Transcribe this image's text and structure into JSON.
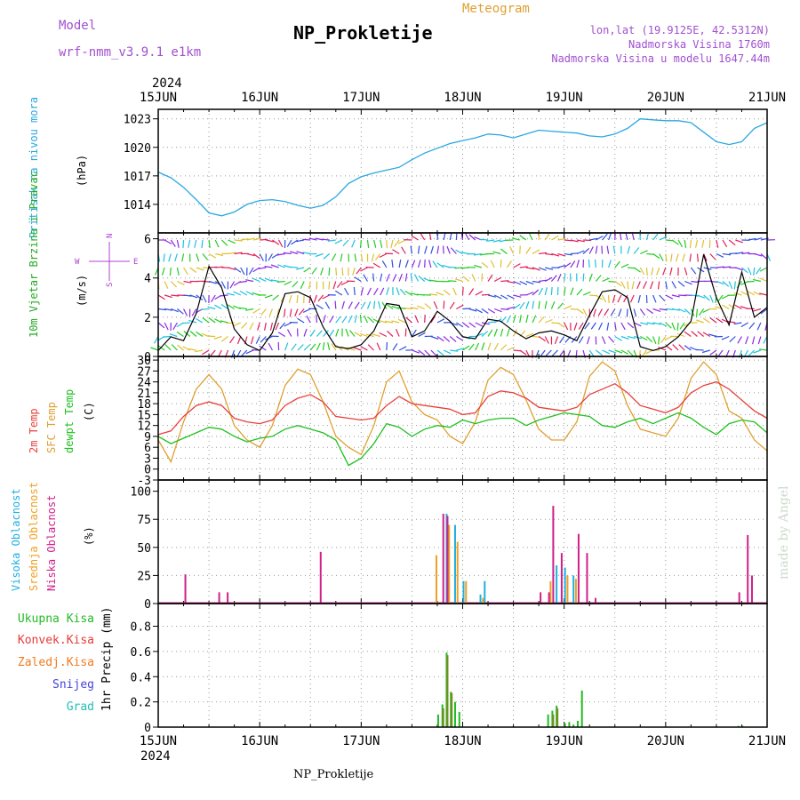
{
  "header": {
    "model_label": "Model",
    "model_name": "wrf-nmm_v3.9.1  e1km",
    "station_title": "NP_Prokletije",
    "meteogram_label": "Meteogram",
    "lonlat": "lon,lat (19.9125E, 42.5312N)",
    "altitude": "Nadmorska Visina 1760m",
    "model_altitude": "Nadmorska Visina u modelu 1647.44m",
    "footer_title": "NP_Prokletije",
    "watermark": "made by Angel"
  },
  "colors": {
    "pressure": "#2aa8e0",
    "temp2m": "#e8403c",
    "sfc": "#e0a030",
    "dewpt": "#20c020",
    "high_cloud": "#20b0e0",
    "mid_cloud": "#f0a020",
    "low_cloud": "#d0208a",
    "total_precip": "#22bb22",
    "convective": "#e83a3a",
    "frozen": "#f07a20",
    "snow": "#4444dd",
    "hail": "#20c0b0",
    "model_purple": "#a050d0",
    "wind_label": "#22aa22",
    "wind_dir": "#b040d0"
  },
  "chart_data": [
    {
      "type": "line",
      "title": "",
      "ylabel": "Pritisak na nivou mora",
      "unit": "(hPa)",
      "ylim": [
        1011,
        1024
      ],
      "y_ticks": [
        1014,
        1017,
        1020,
        1023
      ],
      "x_ticks": [
        "15JUN",
        "16JUN",
        "17JUN",
        "18JUN",
        "19JUN",
        "20JUN",
        "21JUN"
      ],
      "x_year": "2024",
      "series": [
        {
          "name": "",
          "x": [
            0,
            3,
            6,
            9,
            12,
            15,
            18,
            21,
            24,
            27,
            30,
            33,
            36,
            39,
            42,
            45,
            48,
            51,
            54,
            57,
            60,
            63,
            66,
            69,
            72,
            75,
            78,
            81,
            84,
            87,
            90,
            93,
            96,
            99,
            102,
            105,
            108,
            111,
            114,
            117,
            120,
            123,
            126,
            129,
            132,
            135,
            138,
            141,
            144
          ],
          "values": [
            1017.4,
            1016.8,
            1015.8,
            1014.5,
            1013.1,
            1012.8,
            1013.2,
            1014.0,
            1014.4,
            1014.5,
            1014.3,
            1013.9,
            1013.6,
            1013.9,
            1014.8,
            1016.2,
            1016.9,
            1017.3,
            1017.6,
            1017.9,
            1018.7,
            1019.4,
            1019.9,
            1020.4,
            1020.7,
            1021.0,
            1021.4,
            1021.3,
            1021.0,
            1021.4,
            1021.8,
            1021.7,
            1021.6,
            1021.5,
            1021.2,
            1021.1,
            1021.4,
            1022.0,
            1023.0,
            1022.9,
            1022.8,
            1022.8,
            1022.6,
            1021.6,
            1020.6,
            1020.3,
            1020.6,
            1022.0,
            1022.6
          ]
        }
      ]
    },
    {
      "type": "line",
      "title": "",
      "ylabel": "10m Vjetar Brzina i Pravac",
      "unit": "(m/s)",
      "ylim": [
        0,
        6.3
      ],
      "y_ticks": [
        0,
        2,
        4,
        6
      ],
      "direction_key": [
        "N",
        "W",
        "E",
        "S"
      ],
      "series": [
        {
          "name": "",
          "x": [
            0,
            3,
            6,
            9,
            12,
            15,
            18,
            21,
            24,
            27,
            30,
            33,
            36,
            39,
            42,
            45,
            48,
            51,
            54,
            57,
            60,
            63,
            66,
            69,
            72,
            75,
            78,
            81,
            84,
            87,
            90,
            93,
            96,
            99,
            102,
            105,
            108,
            111,
            114,
            117,
            120,
            123,
            126,
            129,
            132,
            135,
            138,
            141,
            144
          ],
          "values": [
            0.3,
            1.0,
            0.8,
            2.2,
            4.6,
            3.5,
            1.4,
            0.6,
            0.3,
            1.2,
            3.2,
            3.3,
            3.0,
            1.5,
            0.5,
            0.4,
            0.6,
            1.3,
            2.7,
            2.6,
            1.0,
            1.3,
            2.3,
            1.8,
            1.0,
            0.9,
            1.9,
            1.8,
            1.3,
            0.9,
            1.2,
            1.3,
            1.1,
            0.8,
            2.1,
            3.3,
            3.4,
            3.0,
            0.5,
            0.3,
            0.5,
            1.0,
            1.8,
            5.2,
            3.0,
            1.6,
            4.3,
            2.0,
            2.5
          ]
        }
      ]
    },
    {
      "type": "line",
      "title": "",
      "ylabels": [
        "2m Temp",
        "SFC Temp",
        "dewpt Temp"
      ],
      "unit": "(C)",
      "ylim": [
        -3,
        31
      ],
      "y_ticks": [
        -3,
        0,
        3,
        6,
        9,
        12,
        15,
        18,
        21,
        24,
        27,
        30
      ],
      "series": [
        {
          "name": "2m Temp",
          "x": [
            0,
            3,
            6,
            9,
            12,
            15,
            18,
            21,
            24,
            27,
            30,
            33,
            36,
            39,
            42,
            45,
            48,
            51,
            54,
            57,
            60,
            63,
            66,
            69,
            72,
            75,
            78,
            81,
            84,
            87,
            90,
            93,
            96,
            99,
            102,
            105,
            108,
            111,
            114,
            117,
            120,
            123,
            126,
            129,
            132,
            135,
            138,
            141,
            144
          ],
          "values": [
            9.5,
            10.5,
            14.5,
            17.5,
            18.5,
            17.5,
            14.0,
            13.0,
            12.5,
            13.5,
            17.5,
            19.5,
            20.5,
            18.5,
            14.5,
            14.0,
            13.5,
            14.0,
            17.5,
            20.0,
            18.0,
            17.5,
            17.0,
            16.5,
            15.0,
            15.5,
            20.0,
            21.5,
            21.0,
            19.5,
            17.0,
            16.5,
            16.0,
            17.0,
            20.5,
            22.0,
            23.5,
            21.0,
            17.5,
            16.5,
            15.5,
            17.0,
            21.0,
            23.0,
            24.0,
            22.0,
            19.0,
            16.0,
            14.0
          ]
        },
        {
          "name": "SFC Temp",
          "x": [
            0,
            3,
            6,
            9,
            12,
            15,
            18,
            21,
            24,
            27,
            30,
            33,
            36,
            39,
            42,
            45,
            48,
            51,
            54,
            57,
            60,
            63,
            66,
            69,
            72,
            75,
            78,
            81,
            84,
            87,
            90,
            93,
            96,
            99,
            102,
            105,
            108,
            111,
            114,
            117,
            120,
            123,
            126,
            129,
            132,
            135,
            138,
            141,
            144
          ],
          "values": [
            8.0,
            2.0,
            13.0,
            22.0,
            26.0,
            22.0,
            12.0,
            8.0,
            6.0,
            12.0,
            23.0,
            27.5,
            26.0,
            18.5,
            9.0,
            6.0,
            4.0,
            12.0,
            24.0,
            27.0,
            18.5,
            15.0,
            13.5,
            9.0,
            7.0,
            13.0,
            24.5,
            28.0,
            26.0,
            19.0,
            11.0,
            8.0,
            8.0,
            13.0,
            25.5,
            29.5,
            27.0,
            17.5,
            11.0,
            10.0,
            9.0,
            14.0,
            25.0,
            29.5,
            26.0,
            16.0,
            14.0,
            8.0,
            5.0
          ]
        },
        {
          "name": "dewpt Temp",
          "x": [
            0,
            3,
            6,
            9,
            12,
            15,
            18,
            21,
            24,
            27,
            30,
            33,
            36,
            39,
            42,
            45,
            48,
            51,
            54,
            57,
            60,
            63,
            66,
            69,
            72,
            75,
            78,
            81,
            84,
            87,
            90,
            93,
            96,
            99,
            102,
            105,
            108,
            111,
            114,
            117,
            120,
            123,
            126,
            129,
            132,
            135,
            138,
            141,
            144
          ],
          "values": [
            9.0,
            7.0,
            8.5,
            10.0,
            11.5,
            11.0,
            9.0,
            7.5,
            8.5,
            9.0,
            11.0,
            12.0,
            11.0,
            10.0,
            8.0,
            1.0,
            3.0,
            7.0,
            12.5,
            11.5,
            9.0,
            11.0,
            12.0,
            11.5,
            13.5,
            12.5,
            13.5,
            14.0,
            14.0,
            12.0,
            13.5,
            14.5,
            15.5,
            15.0,
            14.5,
            12.0,
            11.5,
            13.0,
            14.0,
            12.5,
            14.0,
            15.5,
            14.0,
            11.5,
            9.5,
            12.5,
            13.5,
            13.0,
            10.0
          ]
        }
      ]
    },
    {
      "type": "bar",
      "title": "",
      "ylabels": [
        "Visoka Oblacnost",
        "Srednja Oblacnost",
        "Niska Oblacnost"
      ],
      "unit": "(%)",
      "ylim": [
        0,
        110
      ],
      "y_ticks": [
        0,
        25,
        50,
        75,
        100
      ],
      "series": [
        {
          "name": "Visoka Oblacnost",
          "x": [
            68,
            70,
            72,
            76,
            77,
            94,
            96,
            98
          ],
          "values": [
            80,
            70,
            20,
            8,
            20,
            34,
            32,
            25
          ]
        },
        {
          "name": "Srednja Oblacnost",
          "x": [
            66,
            69,
            71,
            73,
            77,
            93,
            97,
            99
          ],
          "values": [
            43,
            70,
            55,
            20,
            5,
            20,
            25,
            22
          ]
        },
        {
          "name": "Niska Oblacnost",
          "x": [
            6,
            14,
            16,
            38,
            67,
            68,
            90,
            92,
            93,
            95,
            99,
            101,
            103,
            137,
            139,
            140
          ],
          "values": [
            26,
            10,
            10,
            46,
            80,
            78,
            10,
            10,
            87,
            45,
            62,
            45,
            5,
            10,
            61,
            25
          ]
        }
      ]
    },
    {
      "type": "bar",
      "title": "",
      "ylabels": [
        "Ukupna Kisa",
        "Konvek.Kisa",
        "Zaledj.Kisa",
        "Snijeg",
        "Grad"
      ],
      "ylabel_right": "1hr Precip (mm)",
      "ylim": [
        0,
        0.98
      ],
      "y_ticks": [
        0,
        0.2,
        0.4,
        0.6,
        0.8
      ],
      "x_ticks": [
        "15JUN",
        "16JUN",
        "17JUN",
        "18JUN",
        "19JUN",
        "20JUN",
        "21JUN"
      ],
      "x_year": "2024",
      "series": [
        {
          "name": "Ukupna Kisa",
          "x": [
            66,
            67,
            68,
            69,
            70,
            71,
            92,
            93,
            94,
            96,
            97,
            98,
            99,
            100,
            137,
            138
          ],
          "values": [
            0.1,
            0.18,
            0.59,
            0.28,
            0.2,
            0.12,
            0.1,
            0.13,
            0.17,
            0.03,
            0.04,
            0.02,
            0.05,
            0.29,
            0.01,
            0.01
          ]
        },
        {
          "name": "Konvek.Kisa",
          "x": [
            67,
            68,
            69,
            93,
            94
          ],
          "values": [
            0.15,
            0.57,
            0.27,
            0.1,
            0.15
          ]
        }
      ]
    }
  ]
}
